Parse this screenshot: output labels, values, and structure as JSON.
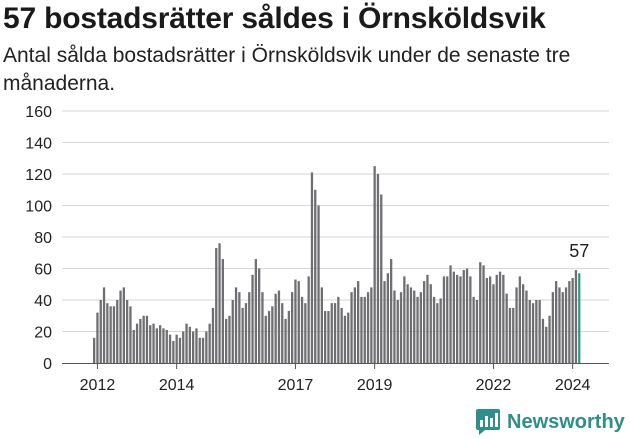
{
  "chart_data": {
    "type": "bar",
    "title": "57 bostadsrätter såldes i Örnsköldsvik",
    "subtitle": "Antal sålda bostadsrätter i Örnsköldsvik under de senaste tre månaderna.",
    "xlabel": "",
    "ylabel": "",
    "ylim": [
      0,
      160
    ],
    "yticks": [
      "0",
      "20",
      "40",
      "60",
      "80",
      "100",
      "120",
      "140",
      "160"
    ],
    "xticks": [
      {
        "label": "2012",
        "index": 1
      },
      {
        "label": "2014",
        "index": 25
      },
      {
        "label": "2017",
        "index": 61
      },
      {
        "label": "2019",
        "index": 85
      },
      {
        "label": "2022",
        "index": 121
      },
      {
        "label": "2024",
        "index": 145
      }
    ],
    "values": [
      16,
      32,
      40,
      48,
      38,
      36,
      36,
      40,
      46,
      48,
      40,
      36,
      21,
      25,
      28,
      30,
      30,
      24,
      25,
      22,
      24,
      22,
      21,
      18,
      14,
      18,
      16,
      20,
      25,
      23,
      20,
      22,
      16,
      16,
      20,
      25,
      35,
      73,
      76,
      66,
      28,
      30,
      40,
      48,
      45,
      35,
      38,
      45,
      56,
      66,
      60,
      45,
      30,
      33,
      36,
      44,
      46,
      38,
      28,
      33,
      45,
      53,
      52,
      42,
      38,
      55,
      121,
      110,
      100,
      48,
      33,
      33,
      38,
      38,
      42,
      35,
      30,
      32,
      45,
      48,
      52,
      42,
      42,
      45,
      48,
      125,
      120,
      107,
      52,
      57,
      66,
      46,
      40,
      45,
      55,
      50,
      48,
      46,
      42,
      45,
      52,
      56,
      50,
      42,
      38,
      41,
      55,
      55,
      62,
      58,
      56,
      55,
      59,
      60,
      55,
      42,
      40,
      64,
      62,
      54,
      55,
      50,
      56,
      58,
      56,
      44,
      35,
      35,
      48,
      55,
      50,
      46,
      40,
      38,
      40,
      40,
      28,
      23,
      30,
      45,
      52,
      48,
      45,
      48,
      52,
      54,
      59,
      57
    ],
    "highlight_color": "#2a9d8f",
    "bar_color": "#6f6f73",
    "data_label": "57"
  },
  "brand": {
    "name": "Newsworthy",
    "color": "#2e8f8a"
  }
}
